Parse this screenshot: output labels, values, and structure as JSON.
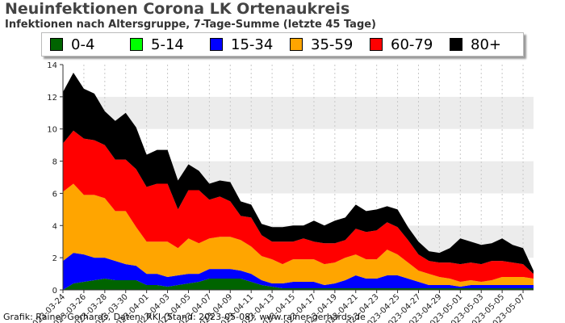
{
  "chart_data": {
    "type": "area",
    "stacked": true,
    "title": "Neuinfektionen Corona LK Ortenaukreis",
    "subtitle": "Infektionen nach Altersgruppe, 7-Tage-Summe (letzte 45 Tage)",
    "footer": "Grafik: Rainer Gerhards, Daten: RKI (Stand: 2023-05-08), www.rainer-gerhards.de",
    "ylim": [
      0,
      14
    ],
    "y_ticks": [
      0,
      2,
      4,
      6,
      8,
      10,
      12,
      14
    ],
    "x_tick_labels": [
      "2023-03-24",
      "2023-03-26",
      "2023-03-28",
      "2023-03-30",
      "2023-04-01",
      "2023-04-03",
      "2023-04-05",
      "2023-04-07",
      "2023-04-09",
      "2023-04-11",
      "2023-04-13",
      "2023-04-15",
      "2023-04-17",
      "2023-04-19",
      "2023-04-21",
      "2023-04-23",
      "2023-04-25",
      "2023-04-27",
      "2023-04-29",
      "2023-05-01",
      "2023-05-03",
      "2023-05-05",
      "2023-05-07"
    ],
    "x": [
      "2023-03-24",
      "2023-03-25",
      "2023-03-26",
      "2023-03-27",
      "2023-03-28",
      "2023-03-29",
      "2023-03-30",
      "2023-03-31",
      "2023-04-01",
      "2023-04-02",
      "2023-04-03",
      "2023-04-04",
      "2023-04-05",
      "2023-04-06",
      "2023-04-07",
      "2023-04-08",
      "2023-04-09",
      "2023-04-10",
      "2023-04-11",
      "2023-04-12",
      "2023-04-13",
      "2023-04-14",
      "2023-04-15",
      "2023-04-16",
      "2023-04-17",
      "2023-04-18",
      "2023-04-19",
      "2023-04-20",
      "2023-04-21",
      "2023-04-22",
      "2023-04-23",
      "2023-04-24",
      "2023-04-25",
      "2023-04-26",
      "2023-04-27",
      "2023-04-28",
      "2023-04-29",
      "2023-04-30",
      "2023-05-01",
      "2023-05-02",
      "2023-05-03",
      "2023-05-04",
      "2023-05-05",
      "2023-05-06",
      "2023-05-07",
      "2023-05-08"
    ],
    "grid": true,
    "legend_position": "top",
    "series": [
      {
        "name": "0-4",
        "color": "#006400",
        "values": [
          0.0,
          0.4,
          0.5,
          0.6,
          0.7,
          0.6,
          0.6,
          0.6,
          0.3,
          0.3,
          0.2,
          0.3,
          0.4,
          0.5,
          0.7,
          0.7,
          0.7,
          0.7,
          0.5,
          0.3,
          0.2,
          0.1,
          0.1,
          0.1,
          0.1,
          0.1,
          0.1,
          0.1,
          0.1,
          0.1,
          0.1,
          0.1,
          0.1,
          0.1,
          0.1,
          0.1,
          0.1,
          0.1,
          0.1,
          0.1,
          0.1,
          0.1,
          0.1,
          0.1,
          0.1,
          0.1
        ]
      },
      {
        "name": "5-14",
        "color": "#00ff00",
        "values": [
          0,
          0,
          0,
          0,
          0,
          0,
          0,
          0,
          0,
          0,
          0,
          0,
          0,
          0,
          0,
          0,
          0,
          0,
          0,
          0,
          0,
          0,
          0,
          0,
          0,
          0,
          0,
          0,
          0,
          0,
          0,
          0,
          0,
          0,
          0,
          0,
          0,
          0,
          0,
          0,
          0,
          0,
          0,
          0,
          0,
          0
        ]
      },
      {
        "name": "15-34",
        "color": "#0000ff",
        "values": [
          1.8,
          1.9,
          1.7,
          1.4,
          1.3,
          1.2,
          1.0,
          0.9,
          0.7,
          0.7,
          0.6,
          0.6,
          0.6,
          0.5,
          0.6,
          0.6,
          0.6,
          0.5,
          0.5,
          0.3,
          0.2,
          0.3,
          0.4,
          0.4,
          0.4,
          0.2,
          0.3,
          0.5,
          0.8,
          0.6,
          0.6,
          0.8,
          0.8,
          0.6,
          0.4,
          0.2,
          0.2,
          0.2,
          0.1,
          0.2,
          0.2,
          0.2,
          0.2,
          0.2,
          0.2,
          0.2
        ]
      },
      {
        "name": "35-59",
        "color": "#ffa500",
        "values": [
          4.3,
          4.3,
          3.7,
          3.9,
          3.7,
          3.1,
          3.3,
          2.4,
          2.0,
          2.0,
          2.2,
          1.7,
          2.2,
          1.9,
          1.9,
          2.0,
          2.0,
          1.9,
          1.7,
          1.5,
          1.5,
          1.2,
          1.4,
          1.4,
          1.4,
          1.3,
          1.3,
          1.4,
          1.3,
          1.2,
          1.2,
          1.6,
          1.3,
          1.0,
          0.7,
          0.7,
          0.5,
          0.4,
          0.3,
          0.3,
          0.2,
          0.3,
          0.5,
          0.5,
          0.5,
          0.4
        ]
      },
      {
        "name": "60-79",
        "color": "#ff0000",
        "values": [
          3.0,
          3.3,
          3.5,
          3.4,
          3.3,
          3.2,
          3.2,
          3.6,
          3.4,
          3.6,
          3.6,
          2.4,
          3.0,
          3.3,
          2.4,
          2.5,
          2.2,
          1.5,
          1.8,
          1.3,
          1.1,
          1.4,
          1.1,
          1.3,
          1.1,
          1.3,
          1.2,
          1.1,
          1.6,
          1.7,
          1.8,
          1.7,
          1.7,
          1.4,
          1.0,
          0.8,
          0.9,
          1.0,
          1.1,
          1.1,
          1.1,
          1.2,
          1.0,
          0.9,
          0.8,
          0.3
        ]
      },
      {
        "name": "80+",
        "color": "#000000",
        "values": [
          3.2,
          3.6,
          3.1,
          2.9,
          2.1,
          2.4,
          2.9,
          2.6,
          2.0,
          2.1,
          2.1,
          1.8,
          1.6,
          1.2,
          1.0,
          1.0,
          1.2,
          0.9,
          0.8,
          0.7,
          0.9,
          0.9,
          1.0,
          0.8,
          1.3,
          1.1,
          1.4,
          1.4,
          1.5,
          1.3,
          1.3,
          1.0,
          1.1,
          0.8,
          0.8,
          0.6,
          0.6,
          0.9,
          1.6,
          1.3,
          1.2,
          1.1,
          1.4,
          1.1,
          1.0,
          0.2
        ]
      }
    ]
  }
}
